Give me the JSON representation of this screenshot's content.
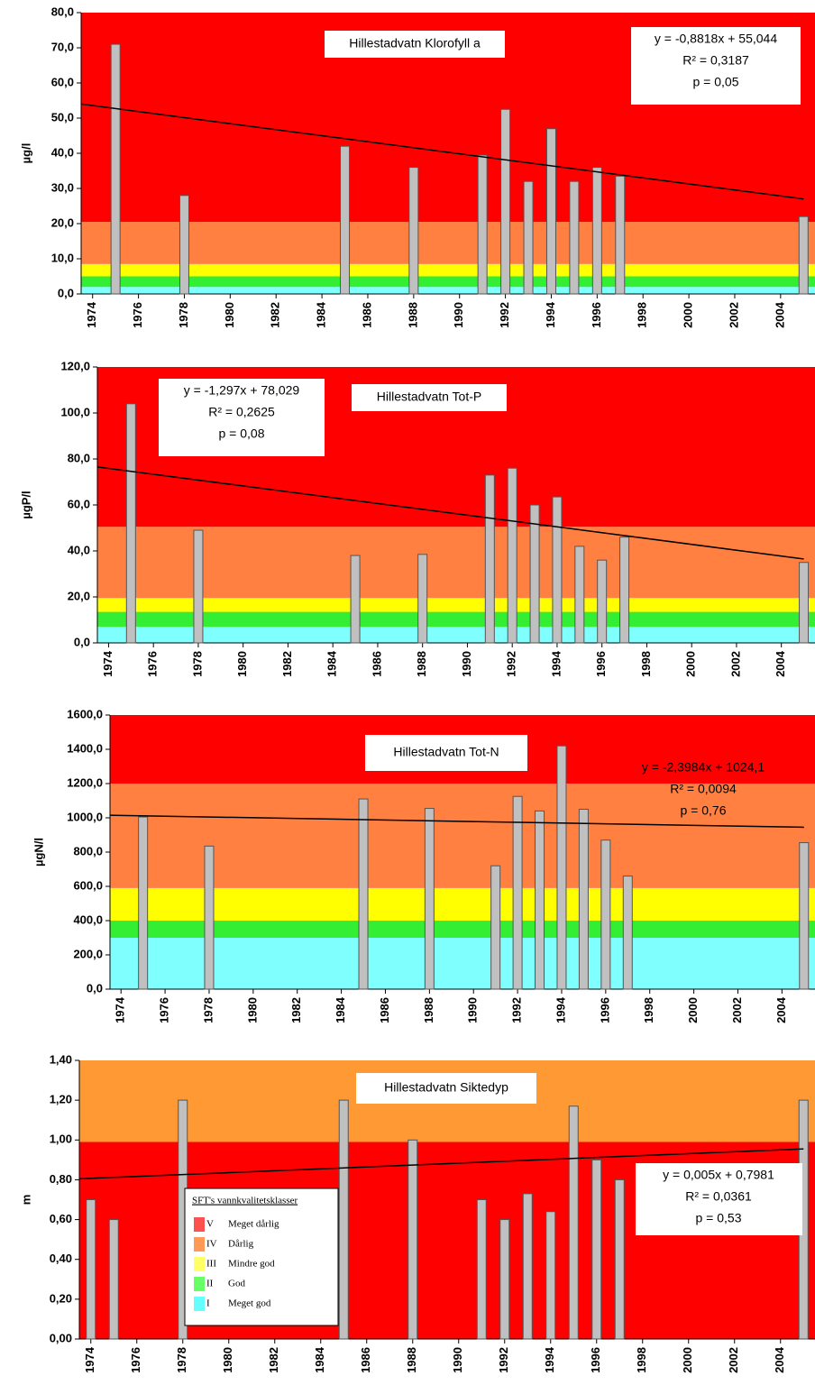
{
  "chart_data": [
    {
      "type": "bar",
      "title": "Hillestadvatn Klorofyll a",
      "y_label": "µg/l",
      "x": [
        1975,
        1978,
        1985,
        1988,
        1991,
        1992,
        1993,
        1994,
        1995,
        1996,
        1997,
        2005
      ],
      "values": [
        71,
        28,
        42,
        36,
        39.5,
        52.5,
        32,
        47,
        32,
        36,
        33.5,
        22
      ],
      "color": "#c0c0c0",
      "xlim": [
        1973.5,
        2005.5
      ],
      "xticks": [
        1974,
        1976,
        1978,
        1980,
        1982,
        1984,
        1986,
        1988,
        1990,
        1992,
        1994,
        1996,
        1998,
        2000,
        2002,
        2004
      ],
      "ylim": [
        0,
        80
      ],
      "yticks": [
        {
          "value": 0,
          "label": "0,0"
        },
        {
          "value": 10,
          "label": "10,0"
        },
        {
          "value": 20,
          "label": "20,0"
        },
        {
          "value": 30,
          "label": "30,0"
        },
        {
          "value": 40,
          "label": "40,0"
        },
        {
          "value": 50,
          "label": "50,0"
        },
        {
          "value": 60,
          "label": "60,0"
        },
        {
          "value": 70,
          "label": "70,0"
        },
        {
          "value": 80,
          "label": "80,0"
        }
      ],
      "bands": [
        {
          "from": 0,
          "to": 2,
          "color": "#80ffff"
        },
        {
          "from": 2,
          "to": 5,
          "color": "#33ee33"
        },
        {
          "from": 5,
          "to": 8.5,
          "color": "#ffff00"
        },
        {
          "from": 8.5,
          "to": 20.5,
          "color": "#ff8040"
        },
        {
          "from": 20.5,
          "to": 80,
          "color": "#ff0000"
        }
      ],
      "trend": {
        "x": [
          1973.5,
          2005
        ],
        "values": [
          54,
          27
        ]
      },
      "annotations": [
        "y = -0,8818x + 55,044",
        "R² = 0,3187",
        "p = 0,05"
      ]
    },
    {
      "type": "bar",
      "title": "Hillestadvatn Tot-P",
      "y_label": "µgP/l",
      "x": [
        1975,
        1978,
        1985,
        1988,
        1991,
        1992,
        1993,
        1994,
        1995,
        1996,
        1997,
        2005
      ],
      "values": [
        104,
        49,
        38,
        38.5,
        73,
        76,
        60,
        63.5,
        42,
        36,
        46,
        35
      ],
      "color": "#c0c0c0",
      "xlim": [
        1973.5,
        2005.5
      ],
      "xticks": [
        1974,
        1976,
        1978,
        1980,
        1982,
        1984,
        1986,
        1988,
        1990,
        1992,
        1994,
        1996,
        1998,
        2000,
        2002,
        2004
      ],
      "ylim": [
        0,
        120
      ],
      "yticks": [
        {
          "value": 0,
          "label": "0,0"
        },
        {
          "value": 20,
          "label": "20,0"
        },
        {
          "value": 40,
          "label": "40,0"
        },
        {
          "value": 60,
          "label": "60,0"
        },
        {
          "value": 80,
          "label": "80,0"
        },
        {
          "value": 100,
          "label": "100,0"
        },
        {
          "value": 120,
          "label": "120,0"
        }
      ],
      "bands": [
        {
          "from": 0,
          "to": 7,
          "color": "#80ffff"
        },
        {
          "from": 7,
          "to": 13.5,
          "color": "#33ee33"
        },
        {
          "from": 13.5,
          "to": 19.5,
          "color": "#ffff00"
        },
        {
          "from": 19.5,
          "to": 50.5,
          "color": "#ff8040"
        },
        {
          "from": 50.5,
          "to": 120,
          "color": "#ff0000"
        }
      ],
      "trend": {
        "x": [
          1973.5,
          2005
        ],
        "values": [
          76.5,
          36.5
        ]
      },
      "annotations": [
        "y = -1,297x + 78,029",
        "R² = 0,2625",
        "p = 0,08"
      ]
    },
    {
      "type": "bar",
      "title": "Hillestadvatn Tot-N",
      "y_label": "µgN/l",
      "x": [
        1975,
        1978,
        1985,
        1988,
        1991,
        1992,
        1993,
        1994,
        1995,
        1996,
        1997,
        2005
      ],
      "values": [
        1005,
        835,
        1110,
        1055,
        720,
        1125,
        1040,
        1420,
        1050,
        870,
        660,
        855
      ],
      "color": "#c0c0c0",
      "xlim": [
        1973.5,
        2005.5
      ],
      "xticks": [
        1974,
        1976,
        1978,
        1980,
        1982,
        1984,
        1986,
        1988,
        1990,
        1992,
        1994,
        1996,
        1998,
        2000,
        2002,
        2004
      ],
      "ylim": [
        0,
        1600
      ],
      "yticks": [
        {
          "value": 0,
          "label": "0,0"
        },
        {
          "value": 200,
          "label": "200,0"
        },
        {
          "value": 400,
          "label": "400,0"
        },
        {
          "value": 600,
          "label": "600,0"
        },
        {
          "value": 800,
          "label": "800,0"
        },
        {
          "value": 1000,
          "label": "1000,0"
        },
        {
          "value": 1200,
          "label": "1200,0"
        },
        {
          "value": 1400,
          "label": "1400,0"
        },
        {
          "value": 1600,
          "label": "1600,0"
        }
      ],
      "bands": [
        {
          "from": 0,
          "to": 300,
          "color": "#80ffff"
        },
        {
          "from": 300,
          "to": 400,
          "color": "#33ee33"
        },
        {
          "from": 400,
          "to": 590,
          "color": "#ffff00"
        },
        {
          "from": 590,
          "to": 1200,
          "color": "#ff8040"
        },
        {
          "from": 1200,
          "to": 1600,
          "color": "#ff0000"
        }
      ],
      "trend": {
        "x": [
          1973.5,
          2005
        ],
        "values": [
          1015,
          945
        ]
      },
      "annotations": [
        "y = -2,3984x + 1024,1",
        "R² = 0,0094",
        "p = 0,76"
      ]
    },
    {
      "type": "bar",
      "title": "Hillestadvatn Siktedyp",
      "y_label": "m",
      "x": [
        1974,
        1975,
        1978,
        1985,
        1988,
        1991,
        1992,
        1993,
        1994,
        1995,
        1996,
        1997,
        2005
      ],
      "values": [
        0.7,
        0.6,
        1.2,
        1.2,
        1.0,
        0.7,
        0.6,
        0.73,
        0.64,
        1.17,
        0.9,
        0.8,
        1.2
      ],
      "color": "#c0c0c0",
      "xlim": [
        1973.5,
        2005.5
      ],
      "xticks": [
        1974,
        1976,
        1978,
        1980,
        1982,
        1984,
        1986,
        1988,
        1990,
        1992,
        1994,
        1996,
        1998,
        2000,
        2002,
        2004
      ],
      "ylim": [
        0,
        1.4
      ],
      "yticks": [
        {
          "value": 0,
          "label": "0,00"
        },
        {
          "value": 0.2,
          "label": "0,20"
        },
        {
          "value": 0.4,
          "label": "0,40"
        },
        {
          "value": 0.6,
          "label": "0,60"
        },
        {
          "value": 0.8,
          "label": "0,80"
        },
        {
          "value": 1.0,
          "label": "1,00"
        },
        {
          "value": 1.2,
          "label": "1,20"
        },
        {
          "value": 1.4,
          "label": "1,40"
        }
      ],
      "bands": [
        {
          "from": 0,
          "to": 0.99,
          "color": "#ff0000"
        },
        {
          "from": 0.99,
          "to": 1.4,
          "color": "#ff9933"
        }
      ],
      "trend": {
        "x": [
          1973.5,
          2005
        ],
        "values": [
          0.805,
          0.955
        ]
      },
      "annotations": [
        "y = 0,005x + 0,7981",
        "R² = 0,0361",
        "p = 0,53"
      ],
      "legend": {
        "title": "SFT's vannkvalitetsklasser",
        "items": [
          {
            "class": "V",
            "label": "Meget dårlig",
            "color": "#ff5050"
          },
          {
            "class": "IV",
            "label": "Dårlig",
            "color": "#ff9955"
          },
          {
            "class": "III",
            "label": "Mindre god",
            "color": "#ffff66"
          },
          {
            "class": "II",
            "label": "God",
            "color": "#66ff66"
          },
          {
            "class": "I",
            "label": "Meget god",
            "color": "#66ffff"
          }
        ]
      }
    }
  ]
}
